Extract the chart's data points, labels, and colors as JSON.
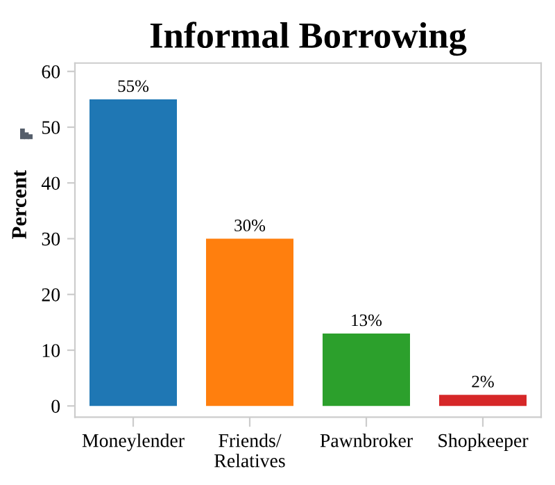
{
  "chart_data": {
    "type": "bar",
    "title": "Informal Borrowing",
    "ylabel": "Percent",
    "categories": [
      "Moneylender",
      "Friends/\nRelatives",
      "Pawnbroker",
      "Shopkeeper"
    ],
    "values": [
      55,
      30,
      13,
      2
    ],
    "colors": [
      "#1f77b4",
      "#ff7f0e",
      "#2ca02c",
      "#d62728"
    ],
    "value_labels": [
      "55%",
      "30%",
      "13%",
      "2%"
    ],
    "ylim": [
      -2,
      61.5
    ],
    "yticks": [
      0,
      10,
      20,
      30,
      40,
      50,
      60
    ],
    "grid": false,
    "legend": false
  }
}
